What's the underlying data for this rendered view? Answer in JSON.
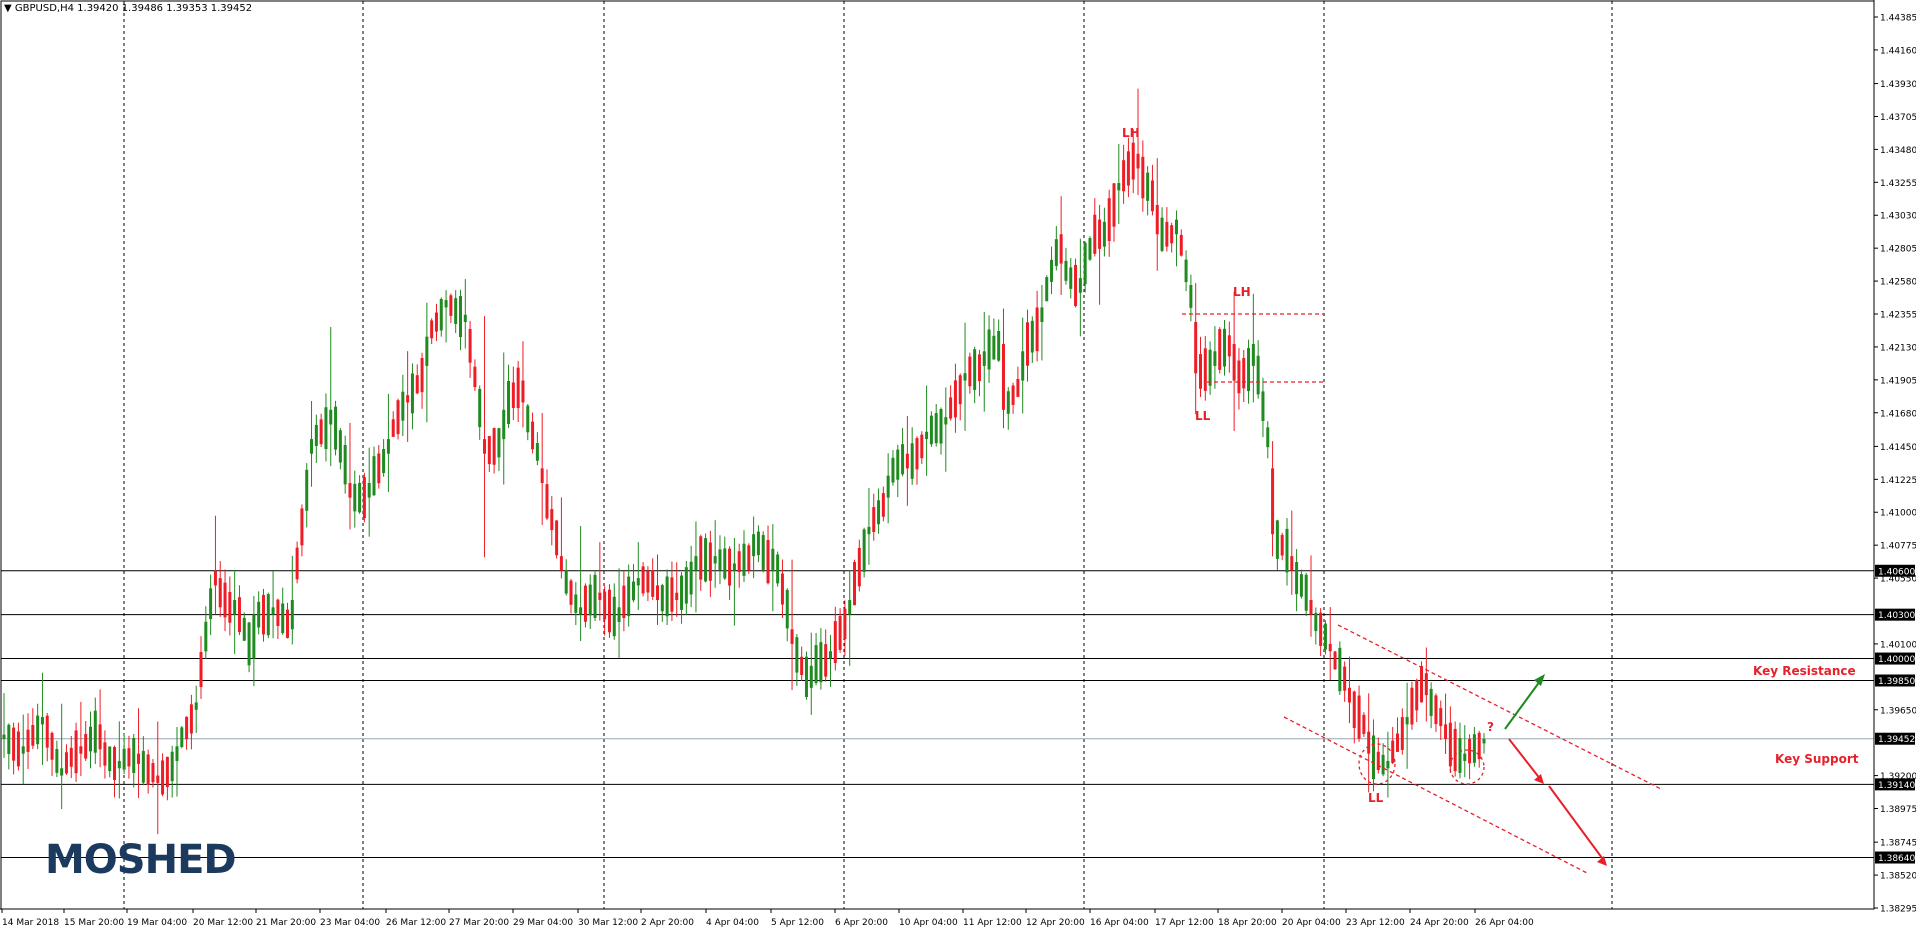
{
  "header": {
    "arrow": "▼",
    "symbol": "GBPUSD,H4",
    "ohlc": "1.39420 1.39486 1.39353 1.39452"
  },
  "brand": {
    "logo_text": "MOSHED",
    "color": "#1c3a5e"
  },
  "annotations": {
    "key_resistance": "Key Resistance",
    "key_support": "Key Support",
    "lh_1": "LH",
    "lh_2": "LH",
    "ll_1": "LL",
    "ll_2": "LL",
    "question": "?"
  },
  "colors": {
    "bull": "#1f8a1f",
    "bear": "#ee1c25",
    "annotation": "#e8202a",
    "grid": "#000000"
  },
  "chart_data": {
    "type": "candlestick",
    "symbol": "GBPUSD",
    "timeframe": "H4",
    "ylim": [
      1.38295,
      1.44385
    ],
    "y_ticks": [
      "1.44385",
      "1.44160",
      "1.43930",
      "1.43705",
      "1.43480",
      "1.43255",
      "1.43030",
      "1.42805",
      "1.42580",
      "1.42355",
      "1.42130",
      "1.41905",
      "1.41680",
      "1.41450",
      "1.41225",
      "1.41000",
      "1.40775",
      "1.40550",
      "1.40100",
      "1.39650",
      "1.39200",
      "1.38975",
      "1.38745",
      "1.38520",
      "1.38295"
    ],
    "price_labels": [
      "1.40600",
      "1.40300",
      "1.40000",
      "1.39850",
      "1.39452",
      "1.39140",
      "1.38640"
    ],
    "horizontal_levels": [
      1.406,
      1.403,
      1.4,
      1.3985,
      1.3914,
      1.3864
    ],
    "current_price": 1.39452,
    "x_labels": [
      "14 Mar 2018",
      "15 Mar 20:00",
      "19 Mar 04:00",
      "20 Mar 12:00",
      "21 Mar 20:00",
      "23 Mar 04:00",
      "26 Mar 12:00",
      "27 Mar 20:00",
      "29 Mar 04:00",
      "30 Mar 12:00",
      "2 Apr 20:00",
      "4 Apr 04:00",
      "5 Apr 12:00",
      "6 Apr 20:00",
      "10 Apr 04:00",
      "11 Apr 12:00",
      "12 Apr 20:00",
      "16 Apr 04:00",
      "17 Apr 12:00",
      "18 Apr 20:00",
      "20 Apr 04:00",
      "23 Apr 12:00",
      "24 Apr 20:00",
      "26 Apr 04:00"
    ],
    "period_separator_count": 6,
    "anchors": [
      [
        1.3945,
        1.3975,
        1.3935,
        1.3948
      ],
      [
        1.3935,
        1.3955,
        1.392,
        1.394
      ],
      [
        1.3955,
        1.3985,
        1.393,
        1.396
      ],
      [
        1.392,
        1.396,
        1.3905,
        1.3925
      ],
      [
        1.394,
        1.3965,
        1.3925,
        1.3935
      ],
      [
        1.3955,
        1.3975,
        1.393,
        1.3938
      ],
      [
        1.3925,
        1.395,
        1.391,
        1.393
      ],
      [
        1.3935,
        1.3965,
        1.3905,
        1.3928
      ],
      [
        1.392,
        1.3955,
        1.388,
        1.3915
      ],
      [
        1.393,
        1.395,
        1.391,
        1.394
      ],
      [
        1.3965,
        1.398,
        1.396,
        1.397
      ],
      [
        1.406,
        1.409,
        1.404,
        1.405
      ],
      [
        1.403,
        1.4055,
        1.4015,
        1.404
      ],
      [
        1.4,
        1.404,
        1.399,
        1.403
      ],
      [
        1.403,
        1.4055,
        1.402,
        1.4035
      ],
      [
        1.402,
        1.406,
        1.401,
        1.404
      ],
      [
        1.414,
        1.4175,
        1.412,
        1.415
      ],
      [
        1.416,
        1.4225,
        1.414,
        1.417
      ],
      [
        1.412,
        1.416,
        1.409,
        1.411
      ],
      [
        1.411,
        1.414,
        1.4095,
        1.412
      ],
      [
        1.414,
        1.4175,
        1.4115,
        1.415
      ],
      [
        1.418,
        1.42,
        1.416,
        1.4175
      ],
      [
        1.42,
        1.4235,
        1.417,
        1.422
      ],
      [
        1.424,
        1.425,
        1.422,
        1.4245
      ],
      [
        1.423,
        1.425,
        1.4215,
        1.4235
      ],
      [
        1.415,
        1.4225,
        1.407,
        1.414
      ],
      [
        1.415,
        1.42,
        1.412,
        1.417
      ],
      [
        1.419,
        1.421,
        1.4165,
        1.4175
      ],
      [
        1.413,
        1.4165,
        1.41,
        1.412
      ],
      [
        1.407,
        1.411,
        1.4055,
        1.406
      ],
      [
        1.403,
        1.408,
        1.402,
        1.4035
      ],
      [
        1.4045,
        1.407,
        1.403,
        1.404
      ],
      [
        1.4025,
        1.4055,
        1.401,
        1.4035
      ],
      [
        1.405,
        1.4075,
        1.4035,
        1.4055
      ],
      [
        1.405,
        1.407,
        1.403,
        1.404
      ],
      [
        1.4045,
        1.4065,
        1.403,
        1.404
      ],
      [
        1.406,
        1.4085,
        1.404,
        1.407
      ],
      [
        1.4065,
        1.4085,
        1.405,
        1.407
      ],
      [
        1.406,
        1.408,
        1.403,
        1.4065
      ],
      [
        1.407,
        1.409,
        1.4055,
        1.4085
      ],
      [
        1.406,
        1.4085,
        1.404,
        1.4075
      ],
      [
        1.402,
        1.406,
        1.399,
        1.401
      ],
      [
        1.398,
        1.401,
        1.397,
        1.3995
      ],
      [
        1.4,
        1.4015,
        1.399,
        1.4005
      ],
      [
        1.403,
        1.406,
        1.4005,
        1.404
      ],
      [
        1.4085,
        1.411,
        1.407,
        1.409
      ],
      [
        1.411,
        1.414,
        1.4095,
        1.4125
      ],
      [
        1.414,
        1.4165,
        1.4115,
        1.413
      ],
      [
        1.415,
        1.4175,
        1.4125,
        1.4155
      ],
      [
        1.416,
        1.4185,
        1.4135,
        1.4165
      ],
      [
        1.419,
        1.4225,
        1.4165,
        1.4195
      ],
      [
        1.42,
        1.423,
        1.418,
        1.421
      ],
      [
        1.4215,
        1.423,
        1.4165,
        1.417
      ],
      [
        1.419,
        1.4225,
        1.417,
        1.421
      ],
      [
        1.423,
        1.4255,
        1.4215,
        1.424
      ],
      [
        1.429,
        1.4305,
        1.426,
        1.427
      ],
      [
        1.425,
        1.428,
        1.423,
        1.426
      ],
      [
        1.43,
        1.431,
        1.425,
        1.428
      ],
      [
        1.432,
        1.435,
        1.43,
        1.4325
      ],
      [
        1.4345,
        1.438,
        1.432,
        1.4335
      ],
      [
        1.431,
        1.434,
        1.4275,
        1.429
      ],
      [
        1.429,
        1.4305,
        1.427,
        1.43
      ],
      [
        1.423,
        1.4245,
        1.417,
        1.4195
      ],
      [
        1.42,
        1.4225,
        1.4185,
        1.421
      ],
      [
        1.4215,
        1.4245,
        1.416,
        1.419
      ],
      [
        1.42,
        1.424,
        1.418,
        1.4215
      ],
      [
        1.413,
        1.414,
        1.407,
        1.4085
      ],
      [
        1.407,
        1.409,
        1.405,
        1.406
      ],
      [
        1.404,
        1.406,
        1.402,
        1.403
      ],
      [
        1.401,
        1.403,
        1.399,
        1.4005
      ],
      [
        1.398,
        1.4,
        1.396,
        1.397
      ],
      [
        1.395,
        1.3965,
        1.392,
        1.3935
      ],
      [
        1.3925,
        1.395,
        1.3915,
        1.393
      ],
      [
        1.3955,
        1.3975,
        1.393,
        1.396
      ],
      [
        1.399,
        1.4,
        1.3965,
        1.3975
      ],
      [
        1.3955,
        1.3975,
        1.3935,
        1.3945
      ],
      [
        1.393,
        1.395,
        1.3925,
        1.3935
      ],
      [
        1.3942,
        1.3949,
        1.3935,
        1.3945
      ]
    ]
  }
}
